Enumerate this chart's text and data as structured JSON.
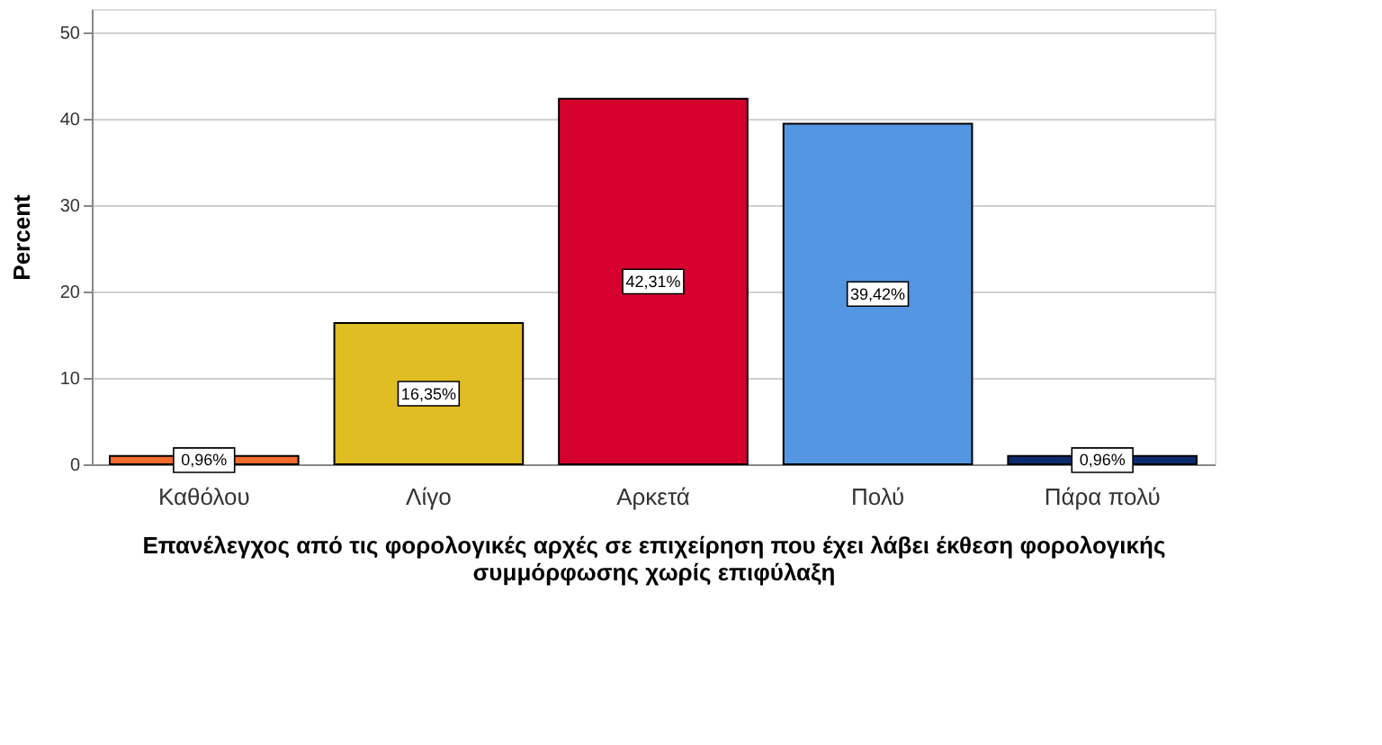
{
  "chart_data": {
    "type": "bar",
    "categories": [
      "Καθόλου",
      "Λίγο",
      "Αρκετά",
      "Πολύ",
      "Πάρα πολύ"
    ],
    "values": [
      0.96,
      16.35,
      42.31,
      39.42,
      0.96
    ],
    "colors": [
      "#f26a2e",
      "#e0bd22",
      "#d6002f",
      "#5596e3",
      "#0b2c70"
    ],
    "value_labels": [
      "0,96%",
      "16,35%",
      "42,31%",
      "39,42%",
      "0,96%"
    ],
    "xlabel": "Επανέλεγχος από τις φορολογικές αρχές σε επιχείρηση που έχει λάβει έκθεση φορολογικής\nσυμμόρφωσης χωρίς επιφύλαξη",
    "ylabel": "Percent",
    "ylim": [
      0,
      52.7
    ],
    "yticks": [
      0,
      10,
      20,
      30,
      40,
      50
    ],
    "grid": "y"
  }
}
